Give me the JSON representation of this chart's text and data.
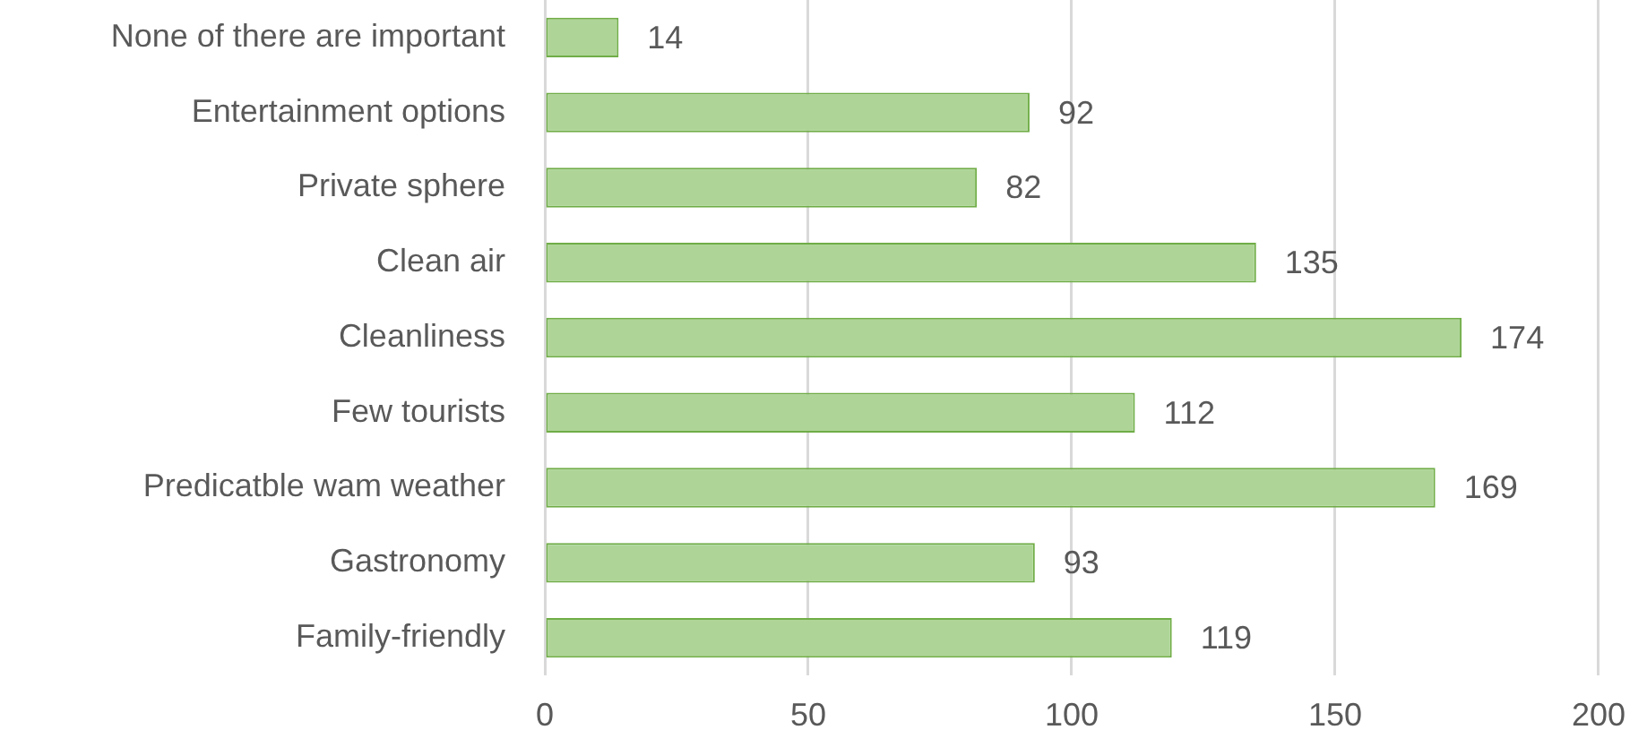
{
  "chart_data": {
    "type": "bar",
    "orientation": "horizontal",
    "categories": [
      "None of there are important",
      "Entertainment options",
      "Private sphere",
      "Clean air",
      "Cleanliness",
      "Few tourists",
      "Predicatble wam weather",
      "Gastronomy",
      "Family-friendly"
    ],
    "values": [
      14,
      92,
      82,
      135,
      174,
      112,
      169,
      93,
      119
    ],
    "color": "#aed597",
    "xlim": [
      0,
      200
    ],
    "xticks": [
      0,
      50,
      100,
      150,
      200
    ],
    "grid": "x",
    "legend": false,
    "data_labels": true
  }
}
